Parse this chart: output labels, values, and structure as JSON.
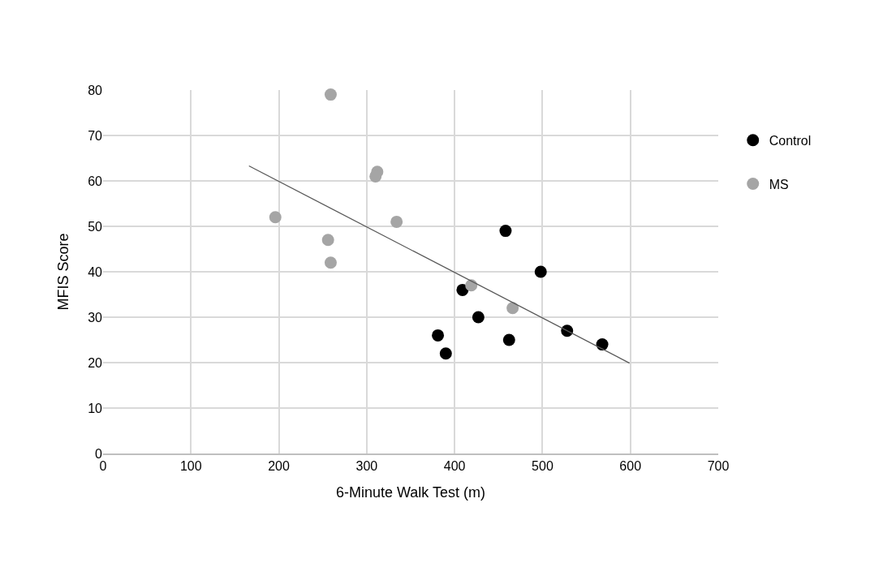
{
  "chart_data": {
    "type": "scatter",
    "xlabel": "6-Minute Walk Test (m)",
    "ylabel": "MFIS Score",
    "xlim": [
      0,
      700
    ],
    "xticks": [
      0,
      100,
      200,
      300,
      400,
      500,
      600,
      700
    ],
    "ylim": [
      0,
      80
    ],
    "yticks": [
      0,
      10,
      20,
      30,
      40,
      50,
      60,
      70,
      80
    ],
    "grid": true,
    "legend": "right",
    "marker": "circle",
    "series": [
      {
        "name": "Control",
        "color": "#000000",
        "x": [
          458,
          498,
          409,
          427,
          381,
          390,
          462,
          528,
          568
        ],
        "values": [
          49,
          40,
          36,
          30,
          26,
          22,
          25,
          27,
          24
        ]
      },
      {
        "name": "MS",
        "color": "#a5a5a5",
        "x": [
          259,
          196,
          256,
          259,
          312,
          310,
          334,
          419,
          466
        ],
        "values": [
          79,
          52,
          47,
          42,
          62,
          61,
          51,
          37,
          32
        ]
      },
      {
        "type": "line",
        "color": "#595959",
        "line_style": "solid",
        "marker": "none",
        "x": [
          166,
          599
        ],
        "values": [
          63.3,
          19.9
        ]
      }
    ]
  }
}
